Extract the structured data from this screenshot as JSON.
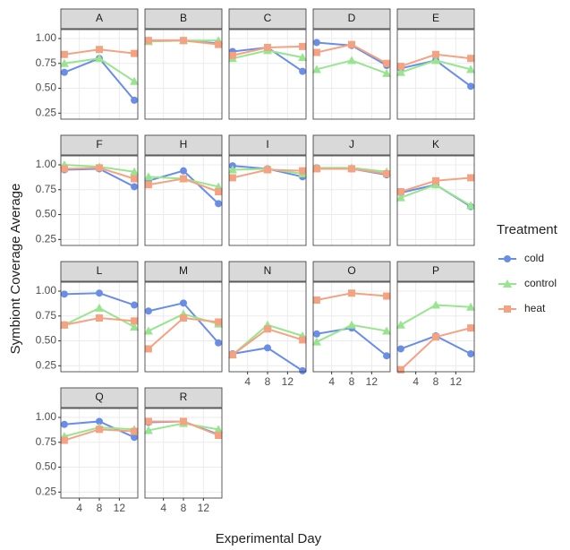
{
  "chart_data": {
    "type": "line",
    "x_label": "Experimental Day",
    "y_label": "Symbiont Coverage Average",
    "legend_title": "Treatment",
    "x": [
      1,
      8,
      15
    ],
    "xlim": [
      0.3,
      15.7
    ],
    "xticks": [
      4,
      8,
      12
    ],
    "ylim": [
      0.19,
      1.09
    ],
    "yticks": [
      0.25,
      0.5,
      0.75,
      1.0
    ],
    "grid": true,
    "legend_position": "right",
    "series": [
      {
        "name": "cold",
        "color": "#6a8ee8",
        "shape": "circle"
      },
      {
        "name": "control",
        "color": "#98e58f",
        "shape": "triangle"
      },
      {
        "name": "heat",
        "color": "#f5a283",
        "shape": "square"
      }
    ],
    "panels": [
      {
        "title": "A",
        "series": [
          {
            "values": [
              0.66,
              0.8,
              0.38
            ]
          },
          {
            "values": [
              0.75,
              0.8,
              0.57
            ]
          },
          {
            "values": [
              0.84,
              0.89,
              0.85
            ]
          }
        ]
      },
      {
        "title": "B",
        "series": [
          {
            "values": [
              0.98,
              0.98,
              0.95
            ]
          },
          {
            "values": [
              0.97,
              0.98,
              0.98
            ]
          },
          {
            "values": [
              0.98,
              0.98,
              0.94
            ]
          }
        ]
      },
      {
        "title": "C",
        "series": [
          {
            "values": [
              0.87,
              0.91,
              0.67
            ]
          },
          {
            "values": [
              0.8,
              0.88,
              0.81
            ]
          },
          {
            "values": [
              0.83,
              0.91,
              0.92
            ]
          }
        ]
      },
      {
        "title": "D",
        "series": [
          {
            "values": [
              0.96,
              0.93,
              0.73
            ]
          },
          {
            "values": [
              0.69,
              0.78,
              0.65
            ]
          },
          {
            "values": [
              0.86,
              0.94,
              0.75
            ]
          }
        ]
      },
      {
        "title": "E",
        "series": [
          {
            "values": [
              0.7,
              0.78,
              0.52
            ]
          },
          {
            "values": [
              0.66,
              0.78,
              0.69
            ]
          },
          {
            "values": [
              0.72,
              0.84,
              0.8
            ]
          }
        ]
      },
      {
        "title": "F",
        "series": [
          {
            "values": [
              0.95,
              0.96,
              0.78
            ]
          },
          {
            "values": [
              1.0,
              0.98,
              0.93
            ]
          },
          {
            "values": [
              0.96,
              0.97,
              0.86
            ]
          }
        ]
      },
      {
        "title": "H",
        "series": [
          {
            "values": [
              0.84,
              0.94,
              0.61
            ]
          },
          {
            "values": [
              0.88,
              0.86,
              0.78
            ]
          },
          {
            "values": [
              0.8,
              0.86,
              0.73
            ]
          }
        ]
      },
      {
        "title": "I",
        "series": [
          {
            "values": [
              0.99,
              0.96,
              0.88
            ]
          },
          {
            "values": [
              0.95,
              0.96,
              0.91
            ]
          },
          {
            "values": [
              0.87,
              0.95,
              0.94
            ]
          }
        ]
      },
      {
        "title": "J",
        "series": [
          {
            "values": [
              0.97,
              0.96,
              0.9
            ]
          },
          {
            "values": [
              0.97,
              0.97,
              0.93
            ]
          },
          {
            "values": [
              0.96,
              0.96,
              0.91
            ]
          }
        ]
      },
      {
        "title": "K",
        "series": [
          {
            "values": [
              0.72,
              0.8,
              0.58
            ]
          },
          {
            "values": [
              0.67,
              0.8,
              0.59
            ]
          },
          {
            "values": [
              0.73,
              0.84,
              0.87
            ]
          }
        ]
      },
      {
        "title": "L",
        "series": [
          {
            "values": [
              0.97,
              0.98,
              0.86
            ]
          },
          {
            "values": [
              0.66,
              0.83,
              0.64
            ]
          },
          {
            "values": [
              0.66,
              0.73,
              0.7
            ]
          }
        ]
      },
      {
        "title": "M",
        "series": [
          {
            "values": [
              0.8,
              0.88,
              0.48
            ]
          },
          {
            "values": [
              0.6,
              0.77,
              0.67
            ]
          },
          {
            "values": [
              0.42,
              0.73,
              0.69
            ]
          }
        ]
      },
      {
        "title": "N",
        "series": [
          {
            "values": [
              0.37,
              0.43,
              0.2
            ]
          },
          {
            "values": [
              0.36,
              0.66,
              0.55
            ]
          },
          {
            "values": [
              0.36,
              0.62,
              0.51
            ]
          }
        ]
      },
      {
        "title": "O",
        "series": [
          {
            "values": [
              0.57,
              0.63,
              0.35
            ]
          },
          {
            "values": [
              0.49,
              0.66,
              0.6
            ]
          },
          {
            "values": [
              0.91,
              0.98,
              0.95
            ]
          }
        ]
      },
      {
        "title": "P",
        "series": [
          {
            "values": [
              0.42,
              0.55,
              0.37
            ]
          },
          {
            "values": [
              0.66,
              0.86,
              0.84
            ]
          },
          {
            "values": [
              0.21,
              0.54,
              0.63
            ]
          }
        ]
      },
      {
        "title": "Q",
        "series": [
          {
            "values": [
              0.93,
              0.96,
              0.8
            ]
          },
          {
            "values": [
              0.81,
              0.9,
              0.88
            ]
          },
          {
            "values": [
              0.77,
              0.88,
              0.86
            ]
          }
        ]
      },
      {
        "title": "R",
        "series": [
          {
            "values": [
              0.95,
              0.96,
              0.83
            ]
          },
          {
            "values": [
              0.87,
              0.94,
              0.88
            ]
          },
          {
            "values": [
              0.96,
              0.96,
              0.82
            ]
          }
        ]
      }
    ]
  }
}
